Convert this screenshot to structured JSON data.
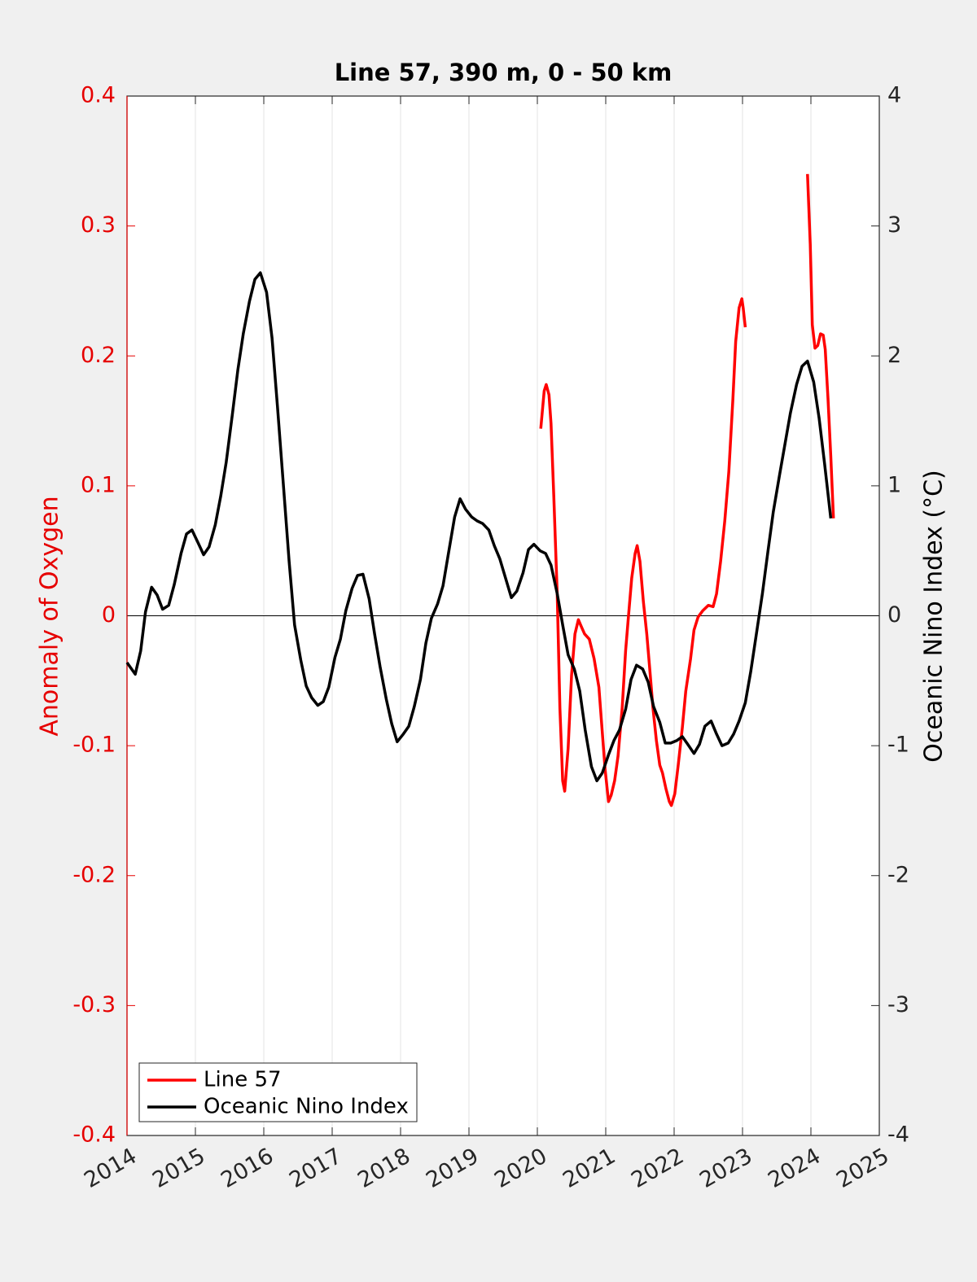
{
  "chart_data": {
    "type": "line",
    "title": "Line 57, 390 m, 0 - 50 km",
    "ylabel": "Anomaly of Oxygen",
    "y2label": "Oceanic Nino Index (°C)",
    "xlim": [
      2014,
      2025
    ],
    "xticks": [
      2014,
      2015,
      2016,
      2017,
      2018,
      2019,
      2020,
      2021,
      2022,
      2023,
      2024,
      2025
    ],
    "ylim": [
      -0.4,
      0.4
    ],
    "yticks": [
      -0.4,
      -0.3,
      -0.2,
      -0.1,
      0,
      0.1,
      0.2,
      0.3,
      0.4
    ],
    "y2lim": [
      -4,
      4
    ],
    "y2ticks": [
      -4,
      -3,
      -2,
      -1,
      0,
      1,
      2,
      3,
      4
    ],
    "xgrid": true,
    "zero_line": true,
    "legend": "lower left",
    "ylabel_color": "#e60000",
    "series": [
      {
        "name": "Line 57",
        "color": "#ff0000",
        "axis": "y",
        "x": [
          2020.05,
          2020.1,
          2020.13,
          2020.17,
          2020.2,
          2020.24,
          2020.29,
          2020.33,
          2020.37,
          2020.4,
          2020.45,
          2020.5,
          2020.55,
          2020.6,
          2020.64,
          2020.69,
          2020.76,
          2020.83,
          2020.9,
          2020.95,
          2020.99,
          2021.04,
          2021.08,
          2021.13,
          2021.18,
          2021.24,
          2021.29,
          2021.33,
          2021.38,
          2021.43,
          2021.46,
          2021.5,
          2021.55,
          2021.6,
          2021.64,
          2021.69,
          2021.74,
          2021.79,
          2021.83,
          2021.88,
          2021.93,
          2021.96,
          2022.01,
          2022.06,
          2022.12,
          2022.17,
          2022.24,
          2022.29,
          2022.35,
          2022.42,
          2022.5,
          2022.57,
          2022.62,
          2022.68,
          2022.74,
          2022.8,
          2022.86,
          2022.9,
          2022.95,
          2022.99,
          2023.01,
          2023.04,
          2023.5,
          2023.95,
          2023.99,
          2024.02,
          2024.06,
          2024.1,
          2024.14,
          2024.18,
          2024.21,
          2024.25,
          2024.29,
          2024.33
        ],
        "values": [
          0.144,
          0.173,
          0.178,
          0.17,
          0.148,
          0.092,
          0.017,
          -0.071,
          -0.127,
          -0.135,
          -0.102,
          -0.046,
          -0.014,
          -0.003,
          -0.008,
          -0.014,
          -0.018,
          -0.033,
          -0.055,
          -0.09,
          -0.118,
          -0.143,
          -0.138,
          -0.127,
          -0.108,
          -0.071,
          -0.027,
          -0.002,
          0.029,
          0.048,
          0.054,
          0.042,
          0.011,
          -0.014,
          -0.039,
          -0.071,
          -0.096,
          -0.115,
          -0.121,
          -0.133,
          -0.143,
          -0.146,
          -0.137,
          -0.115,
          -0.086,
          -0.058,
          -0.033,
          -0.011,
          -0.001,
          0.004,
          0.008,
          0.007,
          0.017,
          0.042,
          0.073,
          0.111,
          0.167,
          0.211,
          0.237,
          0.244,
          0.237,
          0.222,
          null,
          0.34,
          0.286,
          0.224,
          0.206,
          0.208,
          0.217,
          0.216,
          0.205,
          0.167,
          0.123,
          0.075
        ]
      },
      {
        "name": "Oceanic Nino Index",
        "color": "#000000",
        "axis": "y2",
        "x": [
          2014.0,
          2014.12,
          2014.2,
          2014.27,
          2014.36,
          2014.44,
          2014.52,
          2014.61,
          2014.69,
          2014.79,
          2014.87,
          2014.95,
          2015.04,
          2015.12,
          2015.2,
          2015.29,
          2015.37,
          2015.45,
          2015.54,
          2015.62,
          2015.7,
          2015.79,
          2015.87,
          2015.95,
          2016.04,
          2016.12,
          2016.2,
          2016.29,
          2016.37,
          2016.45,
          2016.54,
          2016.62,
          2016.7,
          2016.79,
          2016.87,
          2016.95,
          2017.04,
          2017.12,
          2017.2,
          2017.29,
          2017.37,
          2017.45,
          2017.54,
          2017.62,
          2017.7,
          2017.79,
          2017.87,
          2017.95,
          2018.04,
          2018.12,
          2018.2,
          2018.29,
          2018.37,
          2018.45,
          2018.54,
          2018.62,
          2018.7,
          2018.79,
          2018.87,
          2018.95,
          2019.04,
          2019.12,
          2019.2,
          2019.29,
          2019.37,
          2019.45,
          2019.54,
          2019.62,
          2019.7,
          2019.79,
          2019.87,
          2019.95,
          2020.04,
          2020.12,
          2020.2,
          2020.29,
          2020.37,
          2020.45,
          2020.54,
          2020.62,
          2020.7,
          2020.79,
          2020.87,
          2020.95,
          2021.04,
          2021.12,
          2021.2,
          2021.29,
          2021.37,
          2021.45,
          2021.54,
          2021.62,
          2021.7,
          2021.79,
          2021.87,
          2021.95,
          2022.04,
          2022.12,
          2022.2,
          2022.29,
          2022.37,
          2022.45,
          2022.54,
          2022.62,
          2022.7,
          2022.79,
          2022.87,
          2022.95,
          2023.04,
          2023.12,
          2023.2,
          2023.29,
          2023.37,
          2023.45,
          2023.54,
          2023.62,
          2023.7,
          2023.79,
          2023.87,
          2023.95,
          2024.04,
          2024.12,
          2024.2,
          2024.29
        ],
        "values": [
          -0.36,
          -0.45,
          -0.27,
          0.03,
          0.22,
          0.16,
          0.05,
          0.08,
          0.24,
          0.48,
          0.63,
          0.66,
          0.56,
          0.47,
          0.53,
          0.7,
          0.92,
          1.18,
          1.55,
          1.89,
          2.17,
          2.42,
          2.59,
          2.64,
          2.49,
          2.14,
          1.61,
          0.98,
          0.42,
          -0.07,
          -0.34,
          -0.54,
          -0.63,
          -0.69,
          -0.66,
          -0.55,
          -0.32,
          -0.18,
          0.04,
          0.21,
          0.31,
          0.32,
          0.13,
          -0.14,
          -0.39,
          -0.64,
          -0.83,
          -0.97,
          -0.91,
          -0.85,
          -0.7,
          -0.49,
          -0.21,
          -0.02,
          0.09,
          0.23,
          0.48,
          0.76,
          0.9,
          0.82,
          0.76,
          0.73,
          0.71,
          0.66,
          0.54,
          0.44,
          0.28,
          0.14,
          0.19,
          0.33,
          0.51,
          0.55,
          0.5,
          0.48,
          0.39,
          0.17,
          -0.07,
          -0.3,
          -0.41,
          -0.58,
          -0.88,
          -1.16,
          -1.27,
          -1.21,
          -1.07,
          -0.96,
          -0.88,
          -0.72,
          -0.49,
          -0.38,
          -0.41,
          -0.51,
          -0.7,
          -0.82,
          -0.98,
          -0.98,
          -0.96,
          -0.93,
          -0.99,
          -1.06,
          -0.99,
          -0.85,
          -0.81,
          -0.91,
          -1.0,
          -0.98,
          -0.91,
          -0.81,
          -0.67,
          -0.43,
          -0.15,
          0.17,
          0.49,
          0.8,
          1.08,
          1.32,
          1.56,
          1.78,
          1.92,
          1.96,
          1.8,
          1.52,
          1.17,
          0.75
        ]
      }
    ]
  }
}
